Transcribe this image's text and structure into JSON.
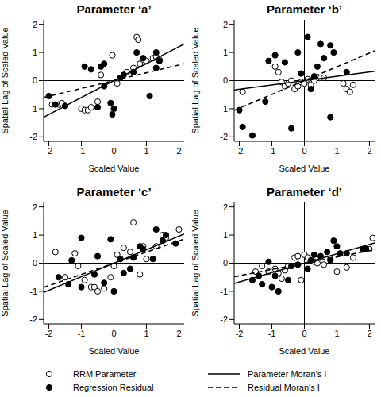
{
  "chart_data": [
    {
      "type": "scatter",
      "title": "Parameter ‘a’",
      "x_label": "Scaled Value",
      "y_label": "Spatial Lag of Scaled Value",
      "xlim": [
        -2.16,
        2.16
      ],
      "ylim": [
        -2.16,
        2.16
      ],
      "xticks": [
        -2,
        -1,
        0,
        1,
        2
      ],
      "yticks": [
        -2,
        -1,
        0,
        1,
        2
      ],
      "legend": "bottom",
      "series": [
        {
          "name": "RRM Parameter",
          "type": "scatter",
          "marker": "open_circle",
          "color": "#000000",
          "x": [
            -1.9,
            -1.7,
            -1.6,
            -1.0,
            -0.9,
            -0.8,
            -0.7,
            -0.5,
            -0.05,
            0.1,
            0.4,
            0.6,
            0.7,
            0.75,
            0.8,
            0.9,
            1.0,
            1.2,
            1.3,
            1.4,
            -0.4
          ],
          "values": [
            -0.85,
            -0.85,
            -0.8,
            -1.0,
            -1.05,
            -1.05,
            -0.95,
            -0.75,
            0.9,
            -0.1,
            0.3,
            0.45,
            1.55,
            1.45,
            0.6,
            0.75,
            0.7,
            0.8,
            0.85,
            0.75,
            0.2
          ]
        },
        {
          "name": "Regression Residual",
          "type": "scatter",
          "marker": "filled_circle",
          "color": "#000000",
          "x": [
            -2.0,
            -1.8,
            -1.5,
            -0.9,
            -0.7,
            -0.4,
            -0.3,
            -0.5,
            -0.1,
            -0.05,
            0.0,
            0.2,
            0.3,
            0.6,
            0.7,
            0.9,
            1.1,
            1.3,
            1.4,
            1.3,
            -0.3
          ],
          "values": [
            -0.55,
            -0.85,
            -0.9,
            0.5,
            0.4,
            0.5,
            -0.2,
            -0.95,
            -0.8,
            -1.2,
            -1.0,
            0.1,
            0.2,
            0.3,
            1.0,
            0.8,
            -0.55,
            0.45,
            0.7,
            1.0,
            0.6
          ]
        },
        {
          "name": "Parameter Moran's I",
          "type": "line",
          "line_style": "solid",
          "color": "#000000",
          "x": [
            -2.16,
            2.16
          ],
          "values": [
            -1.3,
            1.3
          ]
        },
        {
          "name": "Residual Moran's I",
          "type": "line",
          "line_style": "dashed",
          "color": "#000000",
          "x": [
            -2.16,
            2.16
          ],
          "values": [
            -0.6,
            0.6
          ]
        }
      ]
    },
    {
      "type": "scatter",
      "title": "Parameter ‘b’",
      "x_label": "Scaled Value",
      "y_label": "Spatial Lag of Scaled Value",
      "xlim": [
        -2.16,
        2.16
      ],
      "ylim": [
        -2.16,
        2.16
      ],
      "xticks": [
        -2,
        -1,
        0,
        1,
        2
      ],
      "yticks": [
        -2,
        -1,
        0,
        1,
        2
      ],
      "legend": "bottom",
      "series": [
        {
          "name": "RRM Parameter",
          "type": "scatter",
          "marker": "open_circle",
          "color": "#000000",
          "x": [
            -1.9,
            -0.8,
            -0.7,
            -0.6,
            -0.5,
            -0.4,
            -0.3,
            -0.2,
            -0.1,
            0.0,
            0.1,
            0.2,
            0.3,
            0.5,
            0.6,
            1.2,
            1.3,
            1.4,
            1.5,
            -0.9
          ],
          "values": [
            -0.4,
            0.3,
            -0.05,
            -0.2,
            -0.1,
            0.0,
            -0.3,
            -0.2,
            -0.05,
            -0.1,
            0.05,
            -0.15,
            0.0,
            0.1,
            0.1,
            -0.1,
            -0.3,
            -0.4,
            -0.15,
            0.5
          ]
        },
        {
          "name": "Regression Residual",
          "type": "scatter",
          "marker": "filled_circle",
          "color": "#000000",
          "x": [
            -2.0,
            -1.9,
            -1.6,
            -1.2,
            -1.1,
            -0.9,
            -0.6,
            -0.4,
            -0.2,
            -0.1,
            0.1,
            0.2,
            0.3,
            0.4,
            0.5,
            0.6,
            0.8,
            0.9,
            0.8,
            1.3
          ],
          "values": [
            -1.05,
            -1.65,
            -1.95,
            -0.75,
            0.7,
            0.9,
            0.65,
            -1.7,
            1.0,
            0.25,
            1.55,
            -0.3,
            0.15,
            0.5,
            1.3,
            0.8,
            1.25,
            1.0,
            -1.3,
            0.3
          ]
        },
        {
          "name": "Parameter Moran's I",
          "type": "line",
          "line_style": "solid",
          "color": "#000000",
          "x": [
            -2.16,
            2.16
          ],
          "values": [
            -0.33,
            0.33
          ]
        },
        {
          "name": "Residual Moran's I",
          "type": "line",
          "line_style": "dashed",
          "color": "#000000",
          "x": [
            -2.16,
            2.16
          ],
          "values": [
            -1.06,
            1.06
          ]
        }
      ]
    },
    {
      "type": "scatter",
      "title": "Parameter ‘c’",
      "x_label": "Scaled Value",
      "y_label": "Spatial Lag of Scaled Value",
      "xlim": [
        -2.16,
        2.16
      ],
      "ylim": [
        -2.16,
        2.16
      ],
      "xticks": [
        -2,
        -1,
        0,
        1,
        2
      ],
      "yticks": [
        -2,
        -1,
        0,
        1,
        2
      ],
      "legend": "bottom",
      "series": [
        {
          "name": "RRM Parameter",
          "type": "scatter",
          "marker": "open_circle",
          "color": "#000000",
          "x": [
            -1.8,
            -1.5,
            -1.2,
            -1.1,
            -0.9,
            -0.7,
            -0.6,
            -0.5,
            -0.3,
            -0.1,
            0.0,
            0.1,
            0.3,
            0.5,
            0.6,
            0.8,
            1.0,
            1.3,
            1.5,
            1.6,
            2.0,
            0.9
          ],
          "values": [
            0.4,
            -0.5,
            0.35,
            -0.1,
            -0.6,
            -0.85,
            -0.85,
            -1.0,
            -0.9,
            -0.5,
            -0.1,
            0.3,
            0.55,
            0.4,
            1.45,
            -0.4,
            0.15,
            0.6,
            1.0,
            0.9,
            1.2,
            0.6
          ]
        },
        {
          "name": "Regression Residual",
          "type": "scatter",
          "marker": "filled_circle",
          "color": "#000000",
          "x": [
            -1.7,
            -1.4,
            -1.3,
            -1.0,
            -1.0,
            -0.6,
            -0.3,
            -0.1,
            0.0,
            0.2,
            0.3,
            0.5,
            0.6,
            0.8,
            0.9,
            1.2,
            1.3,
            1.5,
            1.6,
            1.9,
            -0.5
          ],
          "values": [
            -0.5,
            -0.75,
            0.1,
            0.9,
            -0.85,
            -0.4,
            -0.7,
            0.85,
            -1.0,
            0.15,
            -0.35,
            -0.2,
            0.2,
            0.6,
            0.5,
            0.15,
            1.2,
            0.8,
            1.0,
            0.7,
            0.25
          ]
        },
        {
          "name": "Parameter Moran's I",
          "type": "line",
          "line_style": "solid",
          "color": "#000000",
          "x": [
            -2.16,
            2.16
          ],
          "values": [
            -1.04,
            1.04
          ]
        },
        {
          "name": "Residual Moran's I",
          "type": "line",
          "line_style": "dashed",
          "color": "#000000",
          "x": [
            -2.16,
            2.16
          ],
          "values": [
            -0.86,
            0.86
          ]
        }
      ]
    },
    {
      "type": "scatter",
      "title": "Parameter ‘d’",
      "x_label": "Scaled Value",
      "y_label": "Spatial Lag of Scaled Value",
      "xlim": [
        -2.16,
        2.16
      ],
      "ylim": [
        -2.16,
        2.16
      ],
      "xticks": [
        -2,
        -1,
        0,
        1,
        2
      ],
      "yticks": [
        -2,
        -1,
        0,
        1,
        2
      ],
      "legend": "bottom",
      "series": [
        {
          "name": "RRM Parameter",
          "type": "scatter",
          "marker": "open_circle",
          "color": "#000000",
          "x": [
            -1.5,
            -1.3,
            -1.1,
            -0.9,
            -0.8,
            -0.6,
            -0.5,
            -0.3,
            -0.2,
            -0.1,
            0.0,
            0.1,
            0.3,
            0.4,
            0.6,
            0.8,
            1.0,
            1.3,
            1.5,
            2.0,
            2.1,
            -0.7
          ],
          "values": [
            -0.3,
            -0.1,
            -0.3,
            -0.2,
            -0.35,
            -0.25,
            -0.1,
            0.2,
            0.25,
            -0.6,
            0.3,
            0.2,
            0.05,
            0.0,
            -0.05,
            0.15,
            -0.3,
            -0.15,
            0.2,
            0.5,
            0.9,
            -0.55
          ]
        },
        {
          "name": "Regression Residual",
          "type": "scatter",
          "marker": "filled_circle",
          "color": "#000000",
          "x": [
            -1.6,
            -1.4,
            -1.3,
            -1.0,
            -0.9,
            -0.8,
            -0.5,
            -0.4,
            -0.2,
            0.1,
            0.2,
            0.3,
            0.5,
            0.7,
            0.8,
            0.9,
            1.0,
            1.1,
            1.3,
            1.8,
            1.9,
            -1.1
          ],
          "values": [
            -0.6,
            -0.45,
            -0.75,
            -0.85,
            -0.45,
            -1.0,
            -0.6,
            -0.1,
            -0.05,
            -0.2,
            0.1,
            0.3,
            0.25,
            0.4,
            0.1,
            0.8,
            0.6,
            0.35,
            0.35,
            0.5,
            0.5,
            0.05
          ]
        },
        {
          "name": "Parameter Moran's I",
          "type": "line",
          "line_style": "solid",
          "color": "#000000",
          "x": [
            -2.16,
            2.16
          ],
          "values": [
            -0.72,
            0.72
          ]
        },
        {
          "name": "Residual Moran's I",
          "type": "line",
          "line_style": "dashed",
          "color": "#000000",
          "x": [
            -2.16,
            2.16
          ],
          "values": [
            -0.48,
            0.48
          ]
        }
      ]
    }
  ]
}
